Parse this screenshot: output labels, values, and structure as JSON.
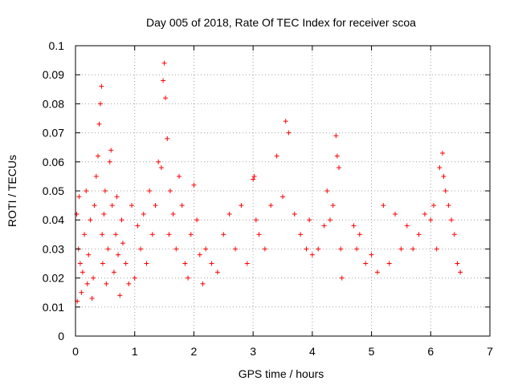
{
  "chart_data": {
    "type": "scatter",
    "title": "Day 005 of 2018, Rate Of TEC Index for receiver scoa",
    "xlabel": "GPS time / hours",
    "ylabel": "ROTI / TECUs",
    "xlim": [
      0,
      7
    ],
    "ylim": [
      0,
      0.1
    ],
    "x_ticks": [
      "0",
      "1",
      "2",
      "3",
      "4",
      "5",
      "6",
      "7"
    ],
    "y_ticks": [
      "0",
      "0.01",
      "0.02",
      "0.03",
      "0.04",
      "0.05",
      "0.06",
      "0.07",
      "0.08",
      "0.09",
      "0.1"
    ],
    "grid": true,
    "marker": "plus",
    "color": "#ff0000",
    "series": [
      {
        "x": [
          0.02,
          0.03,
          0.05,
          0.06,
          0.08,
          0.1,
          0.12,
          0.15,
          0.18,
          0.2,
          0.22,
          0.25,
          0.28,
          0.3,
          0.32,
          0.35,
          0.38,
          0.4,
          0.42,
          0.44,
          0.45,
          0.46,
          0.48,
          0.5,
          0.52,
          0.55,
          0.58,
          0.6,
          0.62,
          0.65,
          0.68,
          0.7,
          0.72,
          0.75,
          0.78,
          0.8,
          0.85,
          0.9,
          0.95,
          1.0,
          1.05,
          1.1,
          1.15,
          1.2,
          1.25,
          1.3,
          1.35,
          1.4,
          1.45,
          1.48,
          1.5,
          1.52,
          1.55,
          1.58,
          1.6,
          1.65,
          1.7,
          1.75,
          1.8,
          1.85,
          1.9,
          1.95,
          2.0,
          2.05,
          2.1,
          2.15,
          2.2,
          2.3,
          2.4,
          2.5,
          2.6,
          2.7,
          2.8,
          2.9,
          3.0,
          3.02,
          3.05,
          3.1,
          3.2,
          3.3,
          3.4,
          3.5,
          3.55,
          3.6,
          3.7,
          3.8,
          3.9,
          3.95,
          4.0,
          4.1,
          4.2,
          4.25,
          4.3,
          4.35,
          4.4,
          4.42,
          4.45,
          4.48,
          4.5,
          4.7,
          4.75,
          4.8,
          4.9,
          5.0,
          5.1,
          5.2,
          5.3,
          5.4,
          5.5,
          5.6,
          5.7,
          5.8,
          5.9,
          6.0,
          6.05,
          6.1,
          6.15,
          6.2,
          6.22,
          6.25,
          6.3,
          6.35,
          6.4,
          6.45,
          6.5
        ],
        "y": [
          0.042,
          0.012,
          0.03,
          0.048,
          0.025,
          0.015,
          0.022,
          0.035,
          0.05,
          0.018,
          0.028,
          0.04,
          0.013,
          0.02,
          0.045,
          0.055,
          0.062,
          0.073,
          0.08,
          0.086,
          0.035,
          0.025,
          0.042,
          0.05,
          0.018,
          0.03,
          0.06,
          0.064,
          0.045,
          0.022,
          0.035,
          0.048,
          0.028,
          0.014,
          0.04,
          0.032,
          0.025,
          0.018,
          0.045,
          0.02,
          0.038,
          0.03,
          0.042,
          0.025,
          0.05,
          0.035,
          0.045,
          0.06,
          0.058,
          0.088,
          0.094,
          0.082,
          0.068,
          0.035,
          0.05,
          0.042,
          0.03,
          0.055,
          0.045,
          0.025,
          0.02,
          0.035,
          0.052,
          0.04,
          0.028,
          0.018,
          0.03,
          0.025,
          0.022,
          0.035,
          0.042,
          0.03,
          0.045,
          0.025,
          0.054,
          0.055,
          0.04,
          0.035,
          0.03,
          0.045,
          0.062,
          0.048,
          0.074,
          0.07,
          0.042,
          0.035,
          0.03,
          0.04,
          0.028,
          0.03,
          0.038,
          0.05,
          0.04,
          0.045,
          0.069,
          0.062,
          0.058,
          0.03,
          0.02,
          0.038,
          0.03,
          0.035,
          0.025,
          0.028,
          0.022,
          0.045,
          0.025,
          0.042,
          0.03,
          0.038,
          0.03,
          0.035,
          0.042,
          0.04,
          0.045,
          0.03,
          0.058,
          0.063,
          0.055,
          0.05,
          0.045,
          0.04,
          0.035,
          0.025,
          0.022
        ]
      }
    ]
  }
}
